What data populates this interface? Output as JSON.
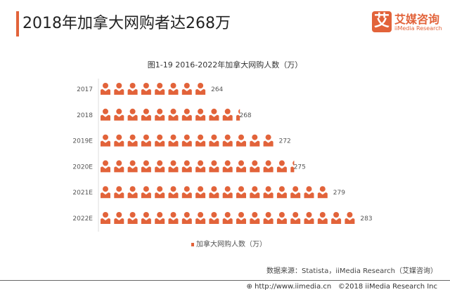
{
  "header": {
    "title": "2018年加拿大网购者达268万",
    "logo_mark": "艾",
    "logo_cn": "艾媒咨询",
    "logo_en": "iiMedia Research"
  },
  "chart_data": {
    "type": "pictograph",
    "title": "图1-19  2016-2022年加拿大网购人数（万）",
    "categories": [
      "2017",
      "2018",
      "2019E",
      "2020E",
      "2021E",
      "2022E"
    ],
    "series": [
      {
        "name": "加拿大网购人数（万）",
        "values": [
          264,
          268,
          272,
          275,
          279,
          283
        ]
      }
    ],
    "icon_counts": [
      8,
      10.3,
      13,
      14.3,
      17,
      19
    ],
    "icon": "person-icon",
    "color": "#e2633a",
    "legend_placement": "bottom"
  },
  "legend": {
    "label": "加拿大网购人数（万）"
  },
  "footer": {
    "source": "数据来源：Statista，iiMedia Research（艾媒咨询）",
    "url": "http://www.iimedia.cn",
    "copyright": "©2018  iiMedia Research Inc"
  }
}
